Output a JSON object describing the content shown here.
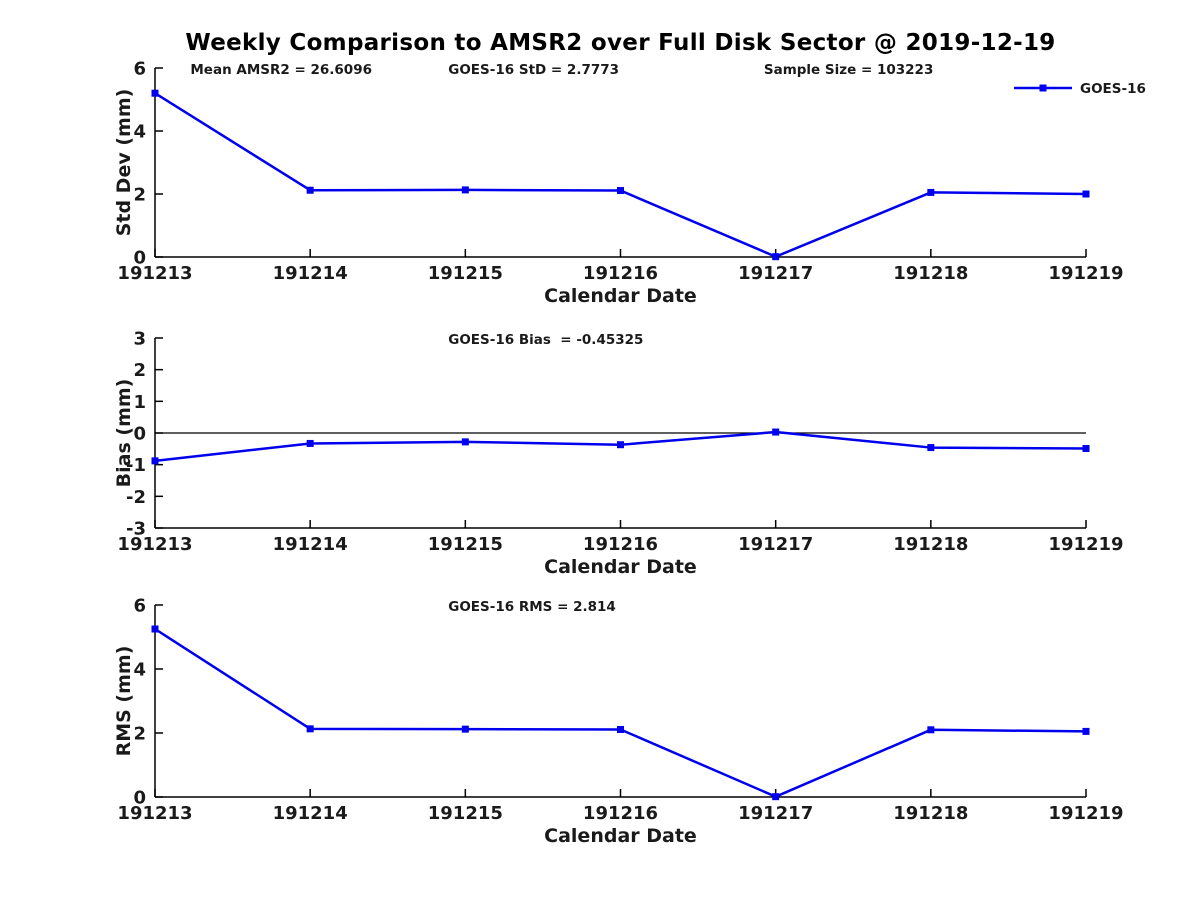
{
  "page": {
    "title": "Weekly Comparison to AMSR2 over Full Disk Sector @ 2019-12-19",
    "background": "#ffffff"
  },
  "colors": {
    "series": "#0000ee",
    "axis": "#000000",
    "text": "#1a1a1a"
  },
  "chart_data": [
    {
      "type": "line",
      "id": "std-dev",
      "ylabel": "Std Dev (mm)",
      "xlabel": "Calendar Date",
      "categories": [
        "191213",
        "191214",
        "191215",
        "191216",
        "191217",
        "191218",
        "191219"
      ],
      "series": [
        {
          "name": "GOES-16",
          "values": [
            5.2,
            2.12,
            2.13,
            2.11,
            0.01,
            2.05,
            2.0
          ]
        }
      ],
      "ylim": [
        0,
        6
      ],
      "yticks": [
        0,
        2,
        4,
        6
      ],
      "grid": false,
      "marker": "square",
      "legend": {
        "label": "GOES-16",
        "position": "top-right"
      },
      "annotations": [
        {
          "text": "Mean AMSR2 = 26.6096",
          "xfrac": 0.038
        },
        {
          "text": "GOES-16 StD = 2.7773",
          "xfrac": 0.315
        },
        {
          "text": "Sample Size = 103223",
          "xfrac": 0.654
        }
      ]
    },
    {
      "type": "line",
      "id": "bias",
      "ylabel": "Bias (mm)",
      "xlabel": "Calendar Date",
      "categories": [
        "191213",
        "191214",
        "191215",
        "191216",
        "191217",
        "191218",
        "191219"
      ],
      "series": [
        {
          "name": "GOES-16",
          "values": [
            -0.88,
            -0.33,
            -0.28,
            -0.37,
            0.03,
            -0.46,
            -0.49
          ]
        }
      ],
      "ylim": [
        -3,
        3
      ],
      "yticks": [
        -3,
        -2,
        -1,
        0,
        1,
        2,
        3
      ],
      "grid": false,
      "marker": "square",
      "zero_line": true,
      "annotations": [
        {
          "text": "GOES-16 Bias  = -0.45325",
          "xfrac": 0.315
        }
      ]
    },
    {
      "type": "line",
      "id": "rms",
      "ylabel": "RMS (mm)",
      "xlabel": "Calendar Date",
      "categories": [
        "191213",
        "191214",
        "191215",
        "191216",
        "191217",
        "191218",
        "191219"
      ],
      "series": [
        {
          "name": "GOES-16",
          "values": [
            5.25,
            2.13,
            2.12,
            2.11,
            0.01,
            2.1,
            2.05
          ]
        }
      ],
      "ylim": [
        0,
        6
      ],
      "yticks": [
        0,
        2,
        4,
        6
      ],
      "grid": false,
      "marker": "square",
      "annotations": [
        {
          "text": "GOES-16 RMS = 2.814",
          "xfrac": 0.315
        }
      ]
    }
  ]
}
